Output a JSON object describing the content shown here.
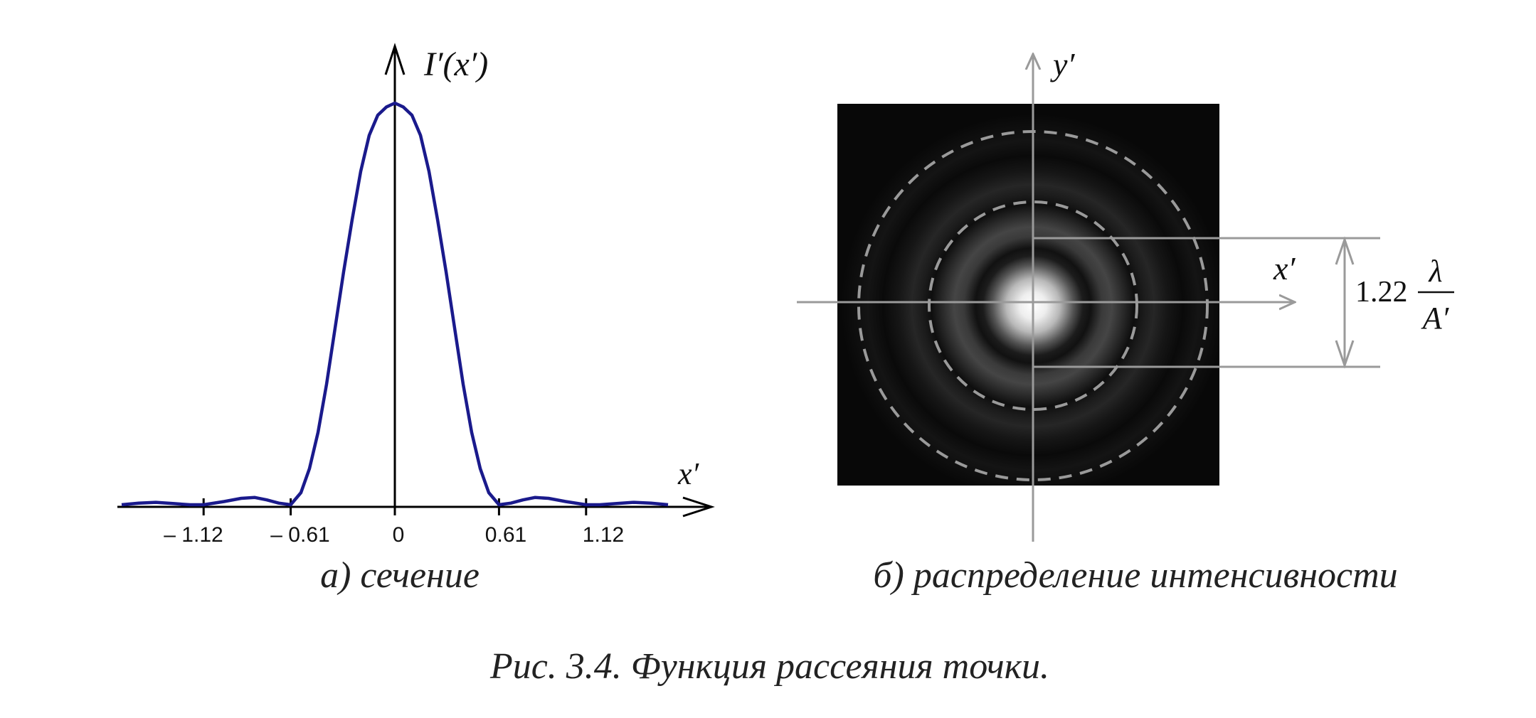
{
  "panel_a": {
    "axis_y_label": "I′(x′)",
    "axis_x_label": "x′",
    "tick_labels": [
      "– 1.12",
      "– 0.61",
      "0",
      "0.61",
      "1.12"
    ],
    "caption": "а) сечение"
  },
  "panel_b": {
    "axis_y_label": "y′",
    "axis_x_label": "x′",
    "dimension_coefficient": "1.22",
    "dimension_numerator": "λ",
    "dimension_denominator": "A′",
    "caption": "б) распределение интенсивности"
  },
  "figure_caption": "Рис. 3.4. Функция рассеяния точки.",
  "chart_data": {
    "type": "line",
    "x_ticks": [
      -1.12,
      -0.61,
      0,
      0.61,
      1.12
    ],
    "x": [
      -1.6,
      -1.5,
      -1.4,
      -1.3,
      -1.2,
      -1.12,
      -1.0,
      -0.9,
      -0.82,
      -0.75,
      -0.68,
      -0.61,
      -0.55,
      -0.5,
      -0.45,
      -0.4,
      -0.35,
      -0.3,
      -0.25,
      -0.2,
      -0.15,
      -0.1,
      -0.05,
      0,
      0.05,
      0.1,
      0.15,
      0.2,
      0.25,
      0.3,
      0.35,
      0.4,
      0.45,
      0.5,
      0.55,
      0.61,
      0.68,
      0.75,
      0.82,
      0.9,
      1.0,
      1.12,
      1.2,
      1.3,
      1.4,
      1.5,
      1.6
    ],
    "y": [
      0.0,
      0.004,
      0.006,
      0.003,
      0.0,
      0.0,
      0.008,
      0.016,
      0.018,
      0.012,
      0.004,
      0.0,
      0.03,
      0.09,
      0.18,
      0.3,
      0.44,
      0.58,
      0.71,
      0.83,
      0.92,
      0.97,
      0.99,
      1.0,
      0.99,
      0.97,
      0.92,
      0.83,
      0.71,
      0.58,
      0.44,
      0.3,
      0.18,
      0.09,
      0.03,
      0.0,
      0.004,
      0.012,
      0.018,
      0.016,
      0.008,
      0.0,
      0.0,
      0.003,
      0.006,
      0.004,
      0.0
    ],
    "series": [
      {
        "color": "#1a1a8c"
      }
    ]
  },
  "colors": {
    "curve": "#1a1a8c",
    "axis": "#000000",
    "overlay": "#9a9a9a",
    "text": "#222222"
  }
}
